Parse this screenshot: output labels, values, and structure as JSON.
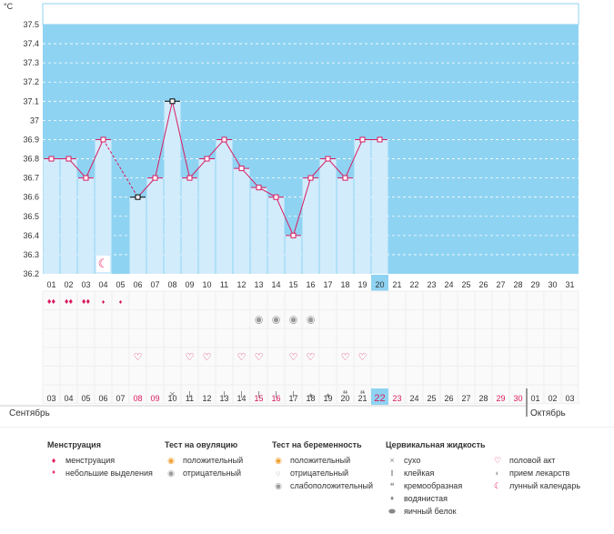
{
  "chart_data": {
    "type": "line",
    "y_unit": "°C",
    "ylim": [
      36.2,
      37.5
    ],
    "y_ticks": [
      "37.5",
      "37.4",
      "37.3",
      "37.2",
      "37.1",
      "37",
      "36.9",
      "36.8",
      "36.7",
      "36.6",
      "36.5",
      "36.4",
      "36.3",
      "36.2"
    ],
    "cycle_days": [
      "01",
      "02",
      "03",
      "04",
      "05",
      "06",
      "07",
      "08",
      "09",
      "10",
      "11",
      "12",
      "13",
      "14",
      "15",
      "16",
      "17",
      "18",
      "19",
      "20",
      "21",
      "22",
      "23",
      "24",
      "25",
      "26",
      "27",
      "28",
      "29",
      "30",
      "31"
    ],
    "temperatures": [
      36.8,
      36.8,
      36.7,
      36.9,
      null,
      36.6,
      36.7,
      37.1,
      36.7,
      36.8,
      36.9,
      36.75,
      36.65,
      36.6,
      36.4,
      36.7,
      36.8,
      36.7,
      36.9,
      36.9,
      null,
      null,
      null,
      null,
      null,
      null,
      null,
      null,
      null,
      null,
      null
    ],
    "dashed_segment": [
      "04",
      "06"
    ],
    "highlighted_cycle_day": "20",
    "calendar_dates": [
      "03",
      "04",
      "05",
      "06",
      "07",
      "08",
      "09",
      "10",
      "11",
      "12",
      "13",
      "14",
      "15",
      "16",
      "17",
      "18",
      "19",
      "20",
      "21",
      "22",
      "23",
      "24",
      "25",
      "26",
      "27",
      "28",
      "29",
      "30",
      "01",
      "02",
      "03"
    ],
    "weekend_dates_index": [
      5,
      6,
      12,
      13,
      19,
      20,
      26,
      27
    ],
    "highlighted_date_index": 19,
    "month_left": "Сентябрь",
    "month_right": "Октябрь",
    "month_break_index": 28,
    "grid": true,
    "colors": {
      "plot_bg": "#8fd3f2",
      "bar": "#d2ecfc",
      "line": "#d81b60",
      "marker_fill": "#ffffff",
      "highlight": "#8fd3f2",
      "weekend_text": "#d81b60",
      "moon": "#e91e63",
      "axis_text": "#333333"
    },
    "icon_rows": {
      "menstruation_heavy": [
        "01",
        "02",
        "03"
      ],
      "menstruation_light": [
        "04",
        "05"
      ],
      "lunar_calendar": [
        "04"
      ],
      "ovulation_test_negative": [
        "13",
        "14",
        "15",
        "16"
      ],
      "intercourse": [
        "06",
        "09",
        "10",
        "12",
        "13",
        "15",
        "16",
        "18",
        "19"
      ],
      "mucus_dry": [
        "08"
      ],
      "mucus_sticky": [
        "09",
        "11",
        "12",
        "13",
        "14",
        "15"
      ],
      "mucus_watery": [
        "16",
        "17"
      ],
      "mucus_creamy": [
        "18",
        "19"
      ]
    }
  },
  "legend": {
    "menstruation": {
      "title": "Менструация",
      "items": [
        "менструация",
        "небольшие выделения"
      ],
      "icons": [
        "blood-drops-icon",
        "blood-drop-icon"
      ]
    },
    "ovulation": {
      "title": "Тест на овуляцию",
      "items": [
        "положительный",
        "отрицательный"
      ],
      "icons": [
        "ovulation-positive-icon",
        "ovulation-negative-icon"
      ]
    },
    "pregnancy": {
      "title": "Тест на беременность",
      "items": [
        "положительный",
        "отрицательный",
        "слабоположительный"
      ],
      "icons": [
        "pregnancy-positive-icon",
        "pregnancy-negative-icon",
        "pregnancy-weak-icon"
      ]
    },
    "mucus": {
      "title": "Цервикальная жидкость",
      "items": [
        "сухо",
        "клейкая",
        "кремообразная",
        "водянистая",
        "яичный белок"
      ],
      "icons": [
        "dry-cross-icon",
        "sticky-icon",
        "creamy-icon",
        "watery-drop-icon",
        "egg-white-icon"
      ]
    },
    "other": {
      "items": [
        "половой акт",
        "прием лекарств",
        "лунный календарь"
      ],
      "icons": [
        "heart-icon",
        "pill-icon",
        "moon-icon"
      ]
    }
  }
}
